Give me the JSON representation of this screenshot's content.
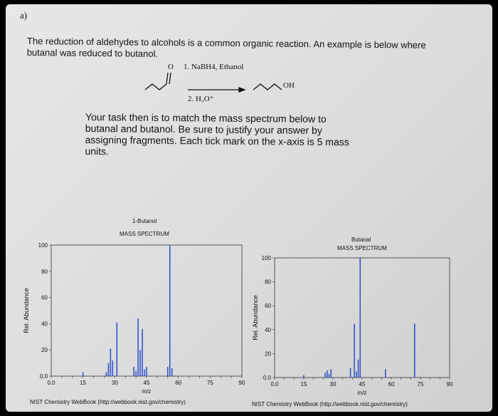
{
  "question_label": "a)",
  "intro": {
    "line1": "The reduction of aldehydes to alcohols is a common organic reaction. An example is below where",
    "line2": "butanal was reduced to butanol."
  },
  "reaction": {
    "carbonyl_o": "O",
    "step1": "1. NaBH4, Ethanol",
    "step2": "2. H₃O⁺",
    "product_oh": "OH"
  },
  "task": {
    "line1": "Your task then is to match the mass spectrum below to",
    "line2": "butanal and butanol. Be sure to justify your answer by",
    "line3": "assigning fragments. Each tick mark on the x-axis is 5 mass",
    "line4": "units."
  },
  "chart_data": [
    {
      "type": "bar",
      "title": "1-Butanol",
      "subtitle": "MASS SPECTRUM",
      "xlabel": "m/z",
      "ylabel": "Rel. Abundance",
      "xlim": [
        0,
        90
      ],
      "ylim": [
        0,
        100
      ],
      "xticks": [
        "0.0",
        "15",
        "30",
        "45",
        "60",
        "75",
        "90"
      ],
      "yticks": [
        "0.0",
        "20",
        "40",
        "60",
        "80",
        "100"
      ],
      "grid": false,
      "x": [
        15,
        26,
        27,
        28,
        29,
        31,
        39,
        40,
        41,
        42,
        43,
        44,
        45,
        55,
        56,
        57
      ],
      "values": [
        3,
        3,
        10,
        21,
        12,
        41,
        7,
        4,
        44,
        20,
        36,
        5,
        7,
        7,
        100,
        6
      ],
      "credit": "NIST Chemistry WebBook (http://webbook.nist.gov/chemistry)"
    },
    {
      "type": "bar",
      "title": "Butanal",
      "subtitle": "MASS SPECTRUM",
      "xlabel": "m/z",
      "ylabel": "Rel. Abundance",
      "xlim": [
        0,
        90
      ],
      "ylim": [
        0,
        100
      ],
      "xticks": [
        "0.0",
        "15",
        "30",
        "45",
        "60",
        "75",
        "90"
      ],
      "yticks": [
        "0.0",
        "20",
        "40",
        "60",
        "80",
        "100"
      ],
      "grid": false,
      "x": [
        15,
        26,
        27,
        28,
        29,
        39,
        41,
        42,
        43,
        44,
        57,
        72
      ],
      "values": [
        2,
        4,
        6,
        3,
        7,
        8,
        45,
        5,
        15,
        100,
        7,
        45
      ],
      "credit": "NIST Chemistry WebBook (http://webbook.nist.gov/chemistry)"
    }
  ]
}
